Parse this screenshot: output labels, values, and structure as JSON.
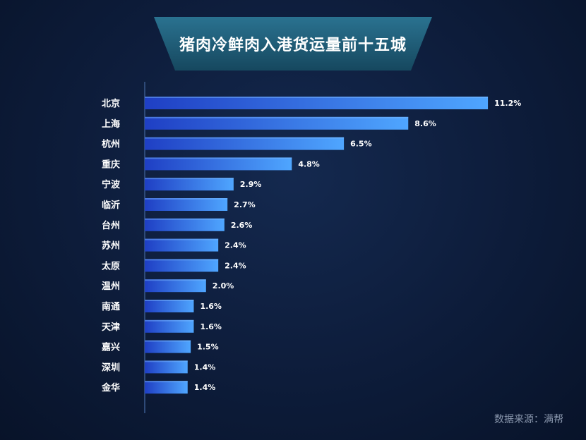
{
  "title": "猪肉冷鲜肉入港货运量前十五城",
  "source": "数据来源：满帮",
  "colors": {
    "background": "#0d1c3a",
    "bar_start": "#1f3fc4",
    "bar_end": "#4fa6ff",
    "banner": "#1d5a74"
  },
  "chart_data": {
    "type": "bar",
    "orientation": "horizontal",
    "title": "猪肉冷鲜肉入港货运量前十五城",
    "categories": [
      "北京",
      "上海",
      "杭州",
      "重庆",
      "宁波",
      "临沂",
      "台州",
      "苏州",
      "太原",
      "温州",
      "南通",
      "天津",
      "嘉兴",
      "深圳",
      "金华"
    ],
    "values": [
      11.2,
      8.6,
      6.5,
      4.8,
      2.9,
      2.7,
      2.6,
      2.4,
      2.4,
      2.0,
      1.6,
      1.6,
      1.5,
      1.4,
      1.4
    ],
    "value_labels": [
      "11.2%",
      "8.6%",
      "6.5%",
      "4.8%",
      "2.9%",
      "2.7%",
      "2.6%",
      "2.4%",
      "2.4%",
      "2.0%",
      "1.6%",
      "1.6%",
      "1.5%",
      "1.4%",
      "1.4%"
    ],
    "unit": "%",
    "grid": false,
    "legend": "none"
  }
}
